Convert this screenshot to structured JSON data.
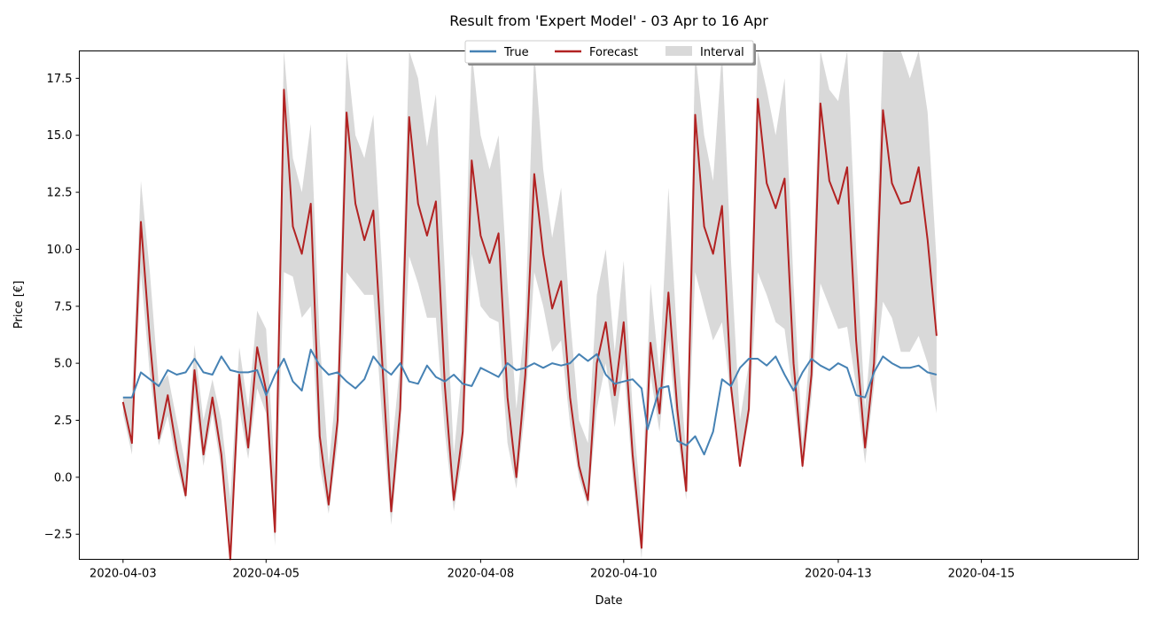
{
  "chart_data": {
    "type": "line",
    "title": "Result from 'Expert Model' - 03 Apr to 16 Apr",
    "xlabel": "Date",
    "ylabel": "Price [€]",
    "x_start": "2020-04-03",
    "x_end": "2020-04-16",
    "x_ticks": [
      "2020-04-03",
      "2020-04-05",
      "2020-04-08",
      "2020-04-10",
      "2020-04-13",
      "2020-04-15"
    ],
    "y_ticks": [
      -2.5,
      0.0,
      2.5,
      5.0,
      7.5,
      10.0,
      12.5,
      15.0,
      17.5
    ],
    "y_tick_labels": [
      "−2.5",
      "0.0",
      "2.5",
      "5.0",
      "7.5",
      "10.0",
      "12.5",
      "15.0",
      "17.5"
    ],
    "ylim": [
      -3.6,
      18.7
    ],
    "grid": false,
    "legend_position": "top-center",
    "series": [
      {
        "name": "True",
        "color": "#4682b4",
        "points": [
          [
            "2020-04-03 00:00",
            3.5
          ],
          [
            "2020-04-03 03:00",
            3.5
          ],
          [
            "2020-04-03 06:00",
            4.6
          ],
          [
            "2020-04-03 09:00",
            4.3
          ],
          [
            "2020-04-03 12:00",
            4.0
          ],
          [
            "2020-04-03 15:00",
            4.7
          ],
          [
            "2020-04-03 18:00",
            4.5
          ],
          [
            "2020-04-03 21:00",
            4.6
          ],
          [
            "2020-04-04 00:00",
            5.2
          ],
          [
            "2020-04-04 03:00",
            4.6
          ],
          [
            "2020-04-04 06:00",
            4.5
          ],
          [
            "2020-04-04 09:00",
            5.3
          ],
          [
            "2020-04-04 12:00",
            4.7
          ],
          [
            "2020-04-04 15:00",
            4.6
          ],
          [
            "2020-04-04 18:00",
            4.6
          ],
          [
            "2020-04-04 21:00",
            4.7
          ],
          [
            "2020-04-05 00:00",
            3.6
          ],
          [
            "2020-04-05 03:00",
            4.5
          ],
          [
            "2020-04-05 06:00",
            5.2
          ],
          [
            "2020-04-05 09:00",
            4.2
          ],
          [
            "2020-04-05 12:00",
            3.8
          ],
          [
            "2020-04-05 15:00",
            5.6
          ],
          [
            "2020-04-05 18:00",
            4.9
          ],
          [
            "2020-04-05 21:00",
            4.5
          ],
          [
            "2020-04-06 00:00",
            4.6
          ],
          [
            "2020-04-06 03:00",
            4.2
          ],
          [
            "2020-04-06 06:00",
            3.9
          ],
          [
            "2020-04-06 09:00",
            4.3
          ],
          [
            "2020-04-06 12:00",
            5.3
          ],
          [
            "2020-04-06 15:00",
            4.8
          ],
          [
            "2020-04-06 18:00",
            4.5
          ],
          [
            "2020-04-06 21:00",
            5.0
          ],
          [
            "2020-04-07 00:00",
            4.2
          ],
          [
            "2020-04-07 03:00",
            4.1
          ],
          [
            "2020-04-07 06:00",
            4.9
          ],
          [
            "2020-04-07 09:00",
            4.4
          ],
          [
            "2020-04-07 12:00",
            4.2
          ],
          [
            "2020-04-07 15:00",
            4.5
          ],
          [
            "2020-04-07 18:00",
            4.1
          ],
          [
            "2020-04-07 21:00",
            4.0
          ],
          [
            "2020-04-08 00:00",
            4.8
          ],
          [
            "2020-04-08 03:00",
            4.6
          ],
          [
            "2020-04-08 06:00",
            4.4
          ],
          [
            "2020-04-08 09:00",
            5.0
          ],
          [
            "2020-04-08 12:00",
            4.7
          ],
          [
            "2020-04-08 15:00",
            4.8
          ],
          [
            "2020-04-08 18:00",
            5.0
          ],
          [
            "2020-04-08 21:00",
            4.8
          ],
          [
            "2020-04-09 00:00",
            5.0
          ],
          [
            "2020-04-09 03:00",
            4.9
          ],
          [
            "2020-04-09 06:00",
            5.0
          ],
          [
            "2020-04-09 09:00",
            5.4
          ],
          [
            "2020-04-09 12:00",
            5.1
          ],
          [
            "2020-04-09 15:00",
            5.4
          ],
          [
            "2020-04-09 18:00",
            4.5
          ],
          [
            "2020-04-09 21:00",
            4.1
          ],
          [
            "2020-04-10 00:00",
            4.2
          ],
          [
            "2020-04-10 03:00",
            4.3
          ],
          [
            "2020-04-10 06:00",
            3.9
          ],
          [
            "2020-04-10 08:00",
            2.1
          ],
          [
            "2020-04-10 12:00",
            3.9
          ],
          [
            "2020-04-10 15:00",
            4.0
          ],
          [
            "2020-04-10 18:00",
            1.6
          ],
          [
            "2020-04-10 21:00",
            1.4
          ],
          [
            "2020-04-11 00:00",
            1.8
          ],
          [
            "2020-04-11 03:00",
            1.0
          ],
          [
            "2020-04-11 06:00",
            2.0
          ],
          [
            "2020-04-11 09:00",
            4.3
          ],
          [
            "2020-04-11 12:00",
            4.0
          ],
          [
            "2020-04-11 15:00",
            4.8
          ],
          [
            "2020-04-11 18:00",
            5.2
          ],
          [
            "2020-04-11 21:00",
            5.2
          ],
          [
            "2020-04-12 00:00",
            4.9
          ],
          [
            "2020-04-12 03:00",
            5.3
          ],
          [
            "2020-04-12 06:00",
            4.5
          ],
          [
            "2020-04-12 09:00",
            3.8
          ],
          [
            "2020-04-12 12:00",
            4.6
          ],
          [
            "2020-04-12 15:00",
            5.2
          ],
          [
            "2020-04-12 18:00",
            4.9
          ],
          [
            "2020-04-12 21:00",
            4.7
          ],
          [
            "2020-04-13 00:00",
            5.0
          ],
          [
            "2020-04-13 03:00",
            4.8
          ],
          [
            "2020-04-13 06:00",
            3.6
          ],
          [
            "2020-04-13 09:00",
            3.5
          ],
          [
            "2020-04-13 12:00",
            4.6
          ],
          [
            "2020-04-13 15:00",
            5.3
          ],
          [
            "2020-04-13 18:00",
            5.0
          ],
          [
            "2020-04-13 21:00",
            4.8
          ],
          [
            "2020-04-14 00:00",
            4.8
          ],
          [
            "2020-04-14 03:00",
            4.9
          ],
          [
            "2020-04-14 06:00",
            4.6
          ],
          [
            "2020-04-14 09:00",
            4.5
          ]
        ]
      },
      {
        "name": "Forecast",
        "color": "#b22222",
        "points": [
          [
            "2020-04-03 00:00",
            3.3
          ],
          [
            "2020-04-03 03:00",
            1.5
          ],
          [
            "2020-04-03 06:00",
            11.2
          ],
          [
            "2020-04-03 09:00",
            6.0
          ],
          [
            "2020-04-03 12:00",
            1.7
          ],
          [
            "2020-04-03 15:00",
            3.6
          ],
          [
            "2020-04-03 18:00",
            1.2
          ],
          [
            "2020-04-03 21:00",
            -0.8
          ],
          [
            "2020-04-04 00:00",
            4.7
          ],
          [
            "2020-04-04 03:00",
            1.0
          ],
          [
            "2020-04-04 06:00",
            3.5
          ],
          [
            "2020-04-04 09:00",
            1.0
          ],
          [
            "2020-04-04 12:00",
            -3.6
          ],
          [
            "2020-04-04 15:00",
            4.5
          ],
          [
            "2020-04-04 18:00",
            1.3
          ],
          [
            "2020-04-04 21:00",
            5.7
          ],
          [
            "2020-04-05 00:00",
            3.8
          ],
          [
            "2020-04-05 03:00",
            -2.4
          ],
          [
            "2020-04-05 06:00",
            17.0
          ],
          [
            "2020-04-05 09:00",
            11.0
          ],
          [
            "2020-04-05 12:00",
            9.8
          ],
          [
            "2020-04-05 15:00",
            12.0
          ],
          [
            "2020-04-05 18:00",
            1.8
          ],
          [
            "2020-04-05 21:00",
            -1.2
          ],
          [
            "2020-04-06 00:00",
            2.5
          ],
          [
            "2020-04-06 03:00",
            16.0
          ],
          [
            "2020-04-06 06:00",
            12.0
          ],
          [
            "2020-04-06 09:00",
            10.4
          ],
          [
            "2020-04-06 12:00",
            11.7
          ],
          [
            "2020-04-06 15:00",
            5.0
          ],
          [
            "2020-04-06 18:00",
            -1.5
          ],
          [
            "2020-04-06 21:00",
            3.0
          ],
          [
            "2020-04-07 00:00",
            15.8
          ],
          [
            "2020-04-07 03:00",
            12.0
          ],
          [
            "2020-04-07 06:00",
            10.6
          ],
          [
            "2020-04-07 09:00",
            12.1
          ],
          [
            "2020-04-07 12:00",
            4.0
          ],
          [
            "2020-04-07 15:00",
            -1.0
          ],
          [
            "2020-04-07 18:00",
            2.0
          ],
          [
            "2020-04-07 21:00",
            13.9
          ],
          [
            "2020-04-08 00:00",
            10.6
          ],
          [
            "2020-04-08 03:00",
            9.4
          ],
          [
            "2020-04-08 06:00",
            10.7
          ],
          [
            "2020-04-08 09:00",
            3.5
          ],
          [
            "2020-04-08 12:00",
            0.0
          ],
          [
            "2020-04-08 15:00",
            4.5
          ],
          [
            "2020-04-08 18:00",
            13.3
          ],
          [
            "2020-04-08 21:00",
            9.8
          ],
          [
            "2020-04-09 00:00",
            7.4
          ],
          [
            "2020-04-09 03:00",
            8.6
          ],
          [
            "2020-04-09 06:00",
            3.5
          ],
          [
            "2020-04-09 09:00",
            0.5
          ],
          [
            "2020-04-09 12:00",
            -1.0
          ],
          [
            "2020-04-09 15:00",
            5.0
          ],
          [
            "2020-04-09 18:00",
            6.8
          ],
          [
            "2020-04-09 21:00",
            3.6
          ],
          [
            "2020-04-10 00:00",
            6.8
          ],
          [
            "2020-04-10 03:00",
            1.0
          ],
          [
            "2020-04-10 06:00",
            -3.1
          ],
          [
            "2020-04-10 09:00",
            5.9
          ],
          [
            "2020-04-10 12:00",
            2.8
          ],
          [
            "2020-04-10 15:00",
            8.1
          ],
          [
            "2020-04-10 18:00",
            3.0
          ],
          [
            "2020-04-10 21:00",
            -0.6
          ],
          [
            "2020-04-11 00:00",
            15.9
          ],
          [
            "2020-04-11 03:00",
            11.0
          ],
          [
            "2020-04-11 06:00",
            9.8
          ],
          [
            "2020-04-11 09:00",
            11.9
          ],
          [
            "2020-04-11 12:00",
            4.0
          ],
          [
            "2020-04-11 15:00",
            0.5
          ],
          [
            "2020-04-11 18:00",
            3.0
          ],
          [
            "2020-04-11 21:00",
            16.6
          ],
          [
            "2020-04-12 00:00",
            12.9
          ],
          [
            "2020-04-12 03:00",
            11.8
          ],
          [
            "2020-04-12 06:00",
            13.1
          ],
          [
            "2020-04-12 09:00",
            5.0
          ],
          [
            "2020-04-12 12:00",
            0.5
          ],
          [
            "2020-04-12 15:00",
            4.5
          ],
          [
            "2020-04-12 18:00",
            16.4
          ],
          [
            "2020-04-12 21:00",
            13.0
          ],
          [
            "2020-04-13 00:00",
            12.0
          ],
          [
            "2020-04-13 03:00",
            13.6
          ],
          [
            "2020-04-13 06:00",
            6.0
          ],
          [
            "2020-04-13 09:00",
            1.3
          ],
          [
            "2020-04-13 12:00",
            5.0
          ],
          [
            "2020-04-13 15:00",
            16.1
          ],
          [
            "2020-04-13 18:00",
            12.9
          ],
          [
            "2020-04-13 21:00",
            12.0
          ],
          [
            "2020-04-14 00:00",
            12.1
          ],
          [
            "2020-04-14 03:00",
            13.6
          ],
          [
            "2020-04-14 06:00",
            10.4
          ],
          [
            "2020-04-14 09:00",
            6.2
          ]
        ]
      },
      {
        "name": "Interval",
        "color": "#d9d9d9",
        "type": "band",
        "lower": [
          2.8,
          1.0,
          9.0,
          4.5,
          1.4,
          2.7,
          0.5,
          -1.0,
          3.5,
          0.5,
          2.8,
          0.3,
          -3.6,
          3.0,
          0.8,
          3.9,
          2.8,
          -3.0,
          9.0,
          8.8,
          7.0,
          7.5,
          0.5,
          -1.6,
          1.5,
          9.0,
          8.5,
          8.0,
          8.0,
          2.5,
          -2.1,
          2.0,
          9.7,
          8.5,
          7.0,
          7.0,
          2.0,
          -1.5,
          1.0,
          9.8,
          7.5,
          7.0,
          6.8,
          1.5,
          -0.5,
          3.0,
          9.0,
          7.5,
          5.5,
          6.0,
          2.3,
          0.0,
          -1.3,
          3.0,
          5.0,
          2.2,
          5.0,
          0.0,
          -3.6,
          4.5,
          2.0,
          6.0,
          2.0,
          -1.0,
          9.0,
          7.5,
          6.0,
          6.8,
          3.5,
          0.5,
          2.5,
          9.0,
          8.0,
          6.8,
          6.5,
          3.5,
          0.3,
          3.5,
          8.5,
          7.5,
          6.5,
          6.6,
          4.0,
          0.6,
          4.0,
          7.7,
          7.0,
          5.5,
          5.5,
          6.2,
          5.0,
          2.8
        ],
        "upper": [
          3.5,
          3.5,
          13.0,
          9.0,
          4.0,
          4.5,
          2.5,
          0.5,
          5.8,
          2.5,
          4.3,
          2.5,
          -1.0,
          5.7,
          3.0,
          7.3,
          6.5,
          0.0,
          18.7,
          14.0,
          12.5,
          15.5,
          6.0,
          0.5,
          4.5,
          18.7,
          15.0,
          14.0,
          15.9,
          9.0,
          1.0,
          5.0,
          18.7,
          17.5,
          14.5,
          16.8,
          9.0,
          1.0,
          5.0,
          18.7,
          15.0,
          13.5,
          15.0,
          8.5,
          3.0,
          7.0,
          18.7,
          13.5,
          10.5,
          12.7,
          7.0,
          2.5,
          1.5,
          8.0,
          10.0,
          5.5,
          9.5,
          3.0,
          -1.5,
          8.5,
          4.5,
          12.7,
          6.0,
          1.0,
          18.7,
          15.0,
          13.0,
          18.7,
          9.5,
          2.5,
          5.0,
          18.7,
          17.0,
          15.0,
          17.5,
          8.5,
          1.5,
          6.5,
          18.7,
          17.0,
          16.5,
          18.7,
          10.0,
          3.0,
          7.5,
          18.7,
          18.7,
          18.7,
          17.5,
          18.7,
          16.0,
          9.5
        ]
      }
    ]
  }
}
